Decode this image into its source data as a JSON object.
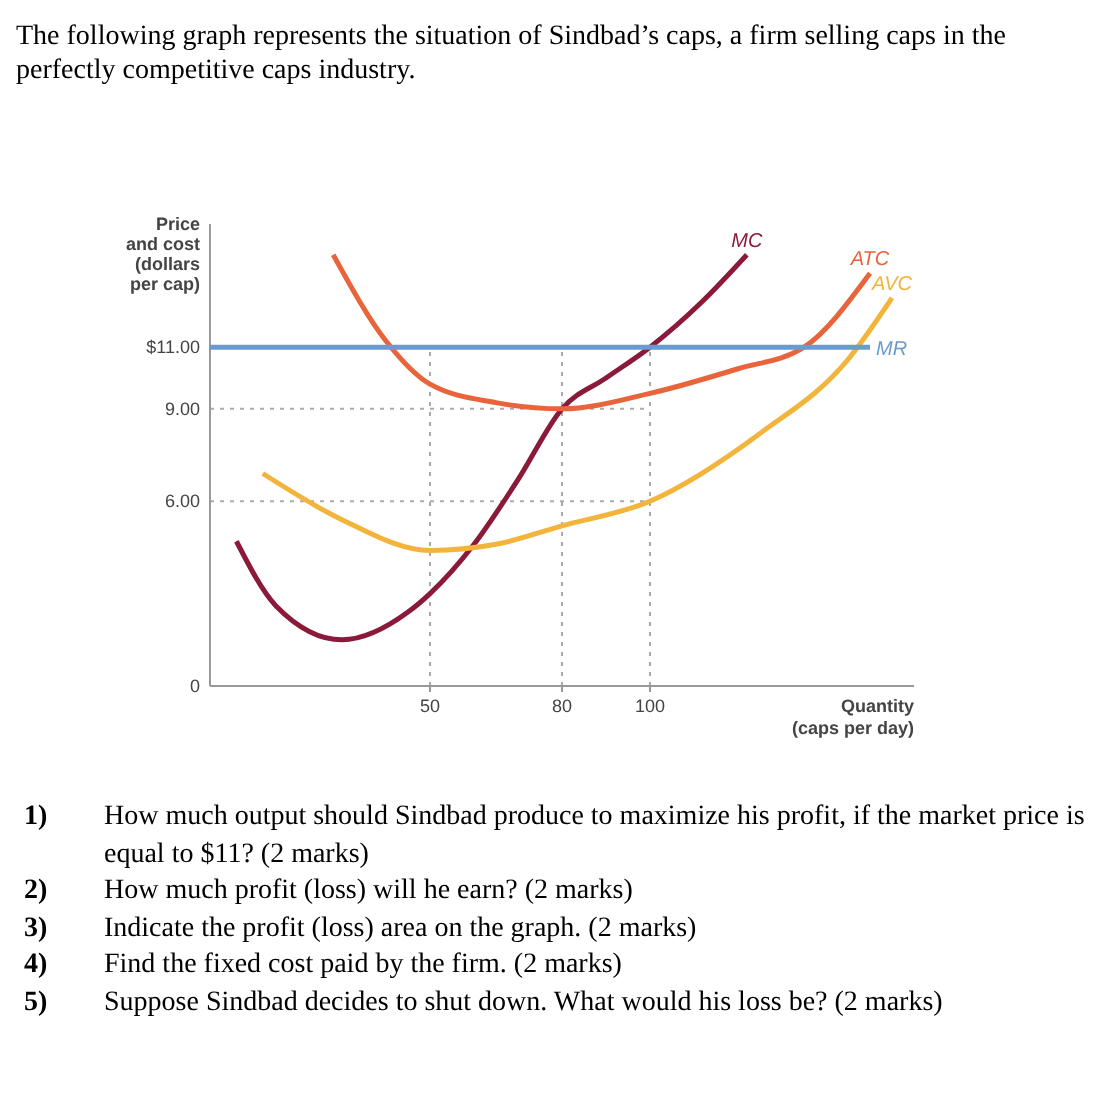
{
  "chart_data": {
    "type": "line",
    "title": "The following graph represents the situation of Sindbad’s caps, a firm selling caps in the perfectly competitive caps industry.",
    "xlabel": "Quantity (caps per day)",
    "ylabel": "Price and cost (dollars per cap)",
    "xlim": [
      0,
      160
    ],
    "ylim": [
      0,
      15
    ],
    "xticks": [
      50,
      80,
      100
    ],
    "yticks": [
      {
        "value": 0,
        "label": "0"
      },
      {
        "value": 6,
        "label": "6.00"
      },
      {
        "value": 9,
        "label": "9.00"
      },
      {
        "value": 11,
        "label": "$11.00"
      }
    ],
    "series": [
      {
        "name": "MC",
        "color": "#8b1a3a",
        "x": [
          6,
          15,
          30,
          45,
          50,
          60,
          70,
          80,
          90,
          100,
          112,
          122
        ],
        "values": [
          4.7,
          2.6,
          1.5,
          2.4,
          3.0,
          4.6,
          6.7,
          9,
          10,
          11,
          12.5,
          14
        ]
      },
      {
        "name": "ATC",
        "color": "#e8643a",
        "x": [
          28,
          40,
          50,
          65,
          80,
          100,
          120,
          135,
          150
        ],
        "values": [
          14,
          11.2,
          9.8,
          9.2,
          9,
          9.5,
          10.3,
          11,
          13.4
        ]
      },
      {
        "name": "AVC",
        "color": "#f2b43a",
        "x": [
          12,
          30,
          50,
          65,
          80,
          100,
          125,
          145,
          155
        ],
        "values": [
          6.9,
          5.4,
          4.4,
          4.6,
          5.2,
          6,
          8.2,
          10.6,
          12.6
        ]
      },
      {
        "name": "MR",
        "color": "#6a9bd0",
        "x": [
          0,
          150
        ],
        "values": [
          11,
          11
        ]
      }
    ],
    "ref_lines": [
      {
        "axis": "x",
        "value": 50,
        "line_style": "dotted",
        "color": "#aaaaaa"
      },
      {
        "axis": "x",
        "value": 80,
        "line_style": "dotted",
        "color": "#aaaaaa"
      },
      {
        "axis": "x",
        "value": 100,
        "line_style": "dotted",
        "color": "#aaaaaa"
      },
      {
        "axis": "y",
        "value": 9,
        "line_style": "dotted",
        "color": "#aaaaaa"
      },
      {
        "axis": "y",
        "value": 6,
        "line_style": "dotted",
        "color": "#aaaaaa"
      }
    ],
    "annotations": [
      "1) How much output should Sindbad produce to maximize his profit, if the market price is equal to $11? (2 marks)",
      "2) How much profit (loss) will he earn? (2 marks)",
      "3) Indicate the profit (loss) area on the graph. (2 marks)",
      "4) Find the fixed cost paid by the firm. (2 marks)",
      "5) Suppose Sindbad decides to shut down. What would his loss be? (2 marks)"
    ],
    "grid": false,
    "marker": "none",
    "line_style": "solid"
  }
}
